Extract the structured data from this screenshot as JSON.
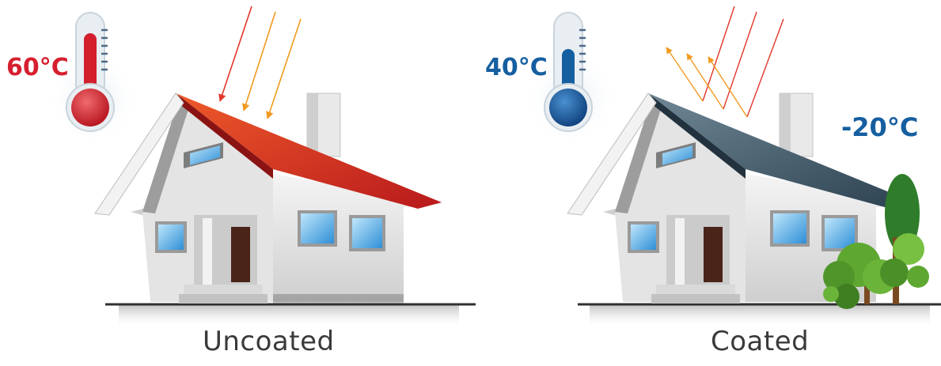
{
  "uncoated": {
    "temperature": "60°C",
    "caption": "Uncoated",
    "temp_color": "#d6202f",
    "roof_color": "#d9321e"
  },
  "coated": {
    "temperature": "40°C",
    "delta": "-20°C",
    "caption": "Coated",
    "temp_color": "#155fa0",
    "roof_color": "#3f5766"
  },
  "icons": {
    "hot_thermometer": "thermometer-hot-icon",
    "cool_thermometer": "thermometer-cool-icon",
    "sun_rays": "sun-rays-icon",
    "reflected_rays": "reflected-rays-icon",
    "tree": "tree-icon"
  }
}
